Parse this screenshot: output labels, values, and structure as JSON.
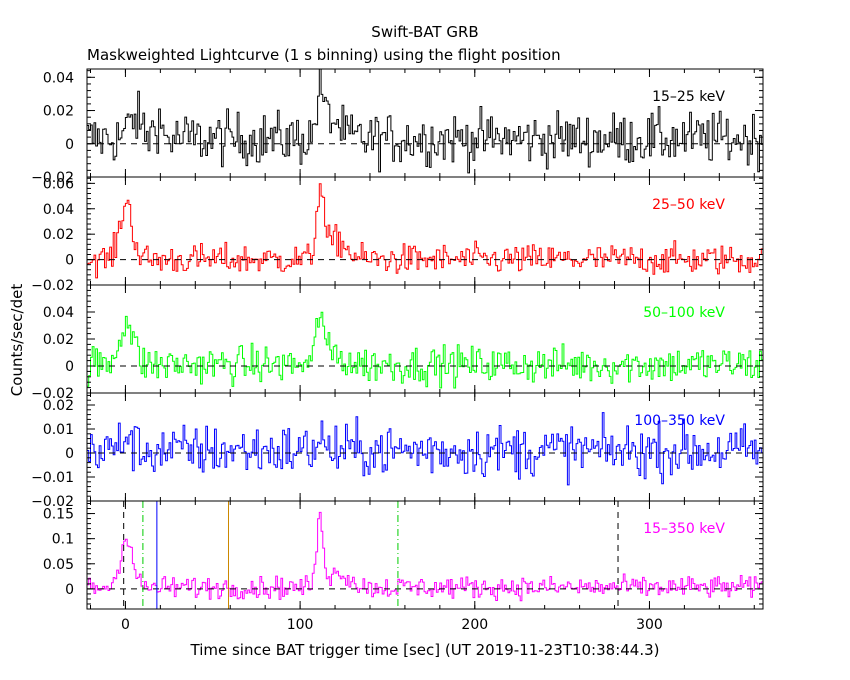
{
  "title": "Swift-BAT GRB",
  "subtitle": "Maskweighted Lightcurve (1 s binning) using the flight position",
  "xlabel": "Time since BAT trigger time [sec] (UT 2019-11-23T10:38:44.3)",
  "ylabel": "Counts/sec/det",
  "colors": {
    "15-25": "#000000",
    "25-50": "#ff0000",
    "50-100": "#00ff00",
    "100-350": "#0000ff",
    "15-350": "#ff00ff",
    "t90_line": "#0000ff",
    "t50_line": "#00cc00",
    "peak_line": "#cc8800",
    "window_line": "#000000"
  },
  "chart_data": [
    {
      "type": "line",
      "name": "15-25 keV",
      "band_label": "15–25 keV",
      "xlim": [
        -22,
        365
      ],
      "ylim": [
        -0.02,
        0.045
      ],
      "yticks": [
        -0.02,
        0,
        0.02,
        0.04
      ],
      "ytick_labels": [
        "−0.02",
        "0",
        "0.02",
        "0.04"
      ],
      "noise": 0.008,
      "baseline": 0.003,
      "peaks": [
        [
          5,
          0.012,
          4
        ],
        [
          18,
          0.012,
          2
        ],
        [
          111,
          0.03,
          2
        ],
        [
          118,
          0.012,
          4
        ]
      ],
      "reference_line_y": 0
    },
    {
      "type": "line",
      "name": "25-50 keV",
      "band_label": "25–50 keV",
      "xlim": [
        -22,
        365
      ],
      "ylim": [
        -0.02,
        0.065
      ],
      "yticks": [
        -0.02,
        0,
        0.02,
        0.04,
        0.06
      ],
      "ytick_labels": [
        "−0.02",
        "0",
        "0.02",
        "0.04",
        "0.06"
      ],
      "noise": 0.006,
      "baseline": 0.0,
      "peaks": [
        [
          0,
          0.045,
          3.5
        ],
        [
          111,
          0.055,
          2
        ],
        [
          120,
          0.015,
          6
        ]
      ],
      "reference_line_y": 0
    },
    {
      "type": "line",
      "name": "50-100 keV",
      "band_label": "50–100 keV",
      "xlim": [
        -22,
        365
      ],
      "ylim": [
        -0.02,
        0.06
      ],
      "yticks": [
        -0.02,
        0,
        0.02,
        0.04
      ],
      "ytick_labels": [
        "−0.02",
        "0",
        "0.02",
        "0.04"
      ],
      "noise": 0.007,
      "baseline": 0.001,
      "peaks": [
        [
          0,
          0.032,
          4
        ],
        [
          111,
          0.04,
          2
        ],
        [
          119,
          0.008,
          5
        ]
      ],
      "reference_line_y": 0
    },
    {
      "type": "line",
      "name": "100-350 keV",
      "band_label": "100–350 keV",
      "xlim": [
        -22,
        365
      ],
      "ylim": [
        -0.02,
        0.025
      ],
      "yticks": [
        -0.02,
        -0.01,
        0,
        0.01,
        0.02
      ],
      "ytick_labels": [
        "−0.02",
        "−0.01",
        "0",
        "0.01",
        "0.02"
      ],
      "noise": 0.0055,
      "baseline": 0.001,
      "peaks": [
        [
          0,
          0.006,
          3
        ],
        [
          111,
          0.006,
          2
        ]
      ],
      "reference_line_y": 0
    },
    {
      "type": "line",
      "name": "15-350 keV",
      "band_label": "15–350 keV",
      "xlim": [
        -22,
        365
      ],
      "ylim": [
        -0.04,
        0.175
      ],
      "yticks": [
        0,
        0.05,
        0.1,
        0.15
      ],
      "ytick_labels": [
        "0",
        "0.05",
        "0.1",
        "0.15"
      ],
      "noise": 0.011,
      "baseline": 0.003,
      "peaks": [
        [
          0,
          0.1,
          3.5
        ],
        [
          111,
          0.13,
          2
        ],
        [
          122,
          0.03,
          6
        ]
      ],
      "reference_line_y": 0,
      "vlines": [
        {
          "x": -1,
          "style": "dashed",
          "color_key": "window_line"
        },
        {
          "x": 10,
          "style": "dashdot",
          "color_key": "t50_line"
        },
        {
          "x": 18,
          "style": "solid",
          "color_key": "t90_line"
        },
        {
          "x": 59,
          "style": "solid",
          "color_key": "peak_line"
        },
        {
          "x": 156,
          "style": "dashdot",
          "color_key": "t50_line"
        },
        {
          "x": 282,
          "style": "dashed",
          "color_key": "window_line"
        }
      ]
    }
  ],
  "xticks": [
    0,
    100,
    200,
    300
  ],
  "xtick_labels": [
    "0",
    "100",
    "200",
    "300"
  ]
}
